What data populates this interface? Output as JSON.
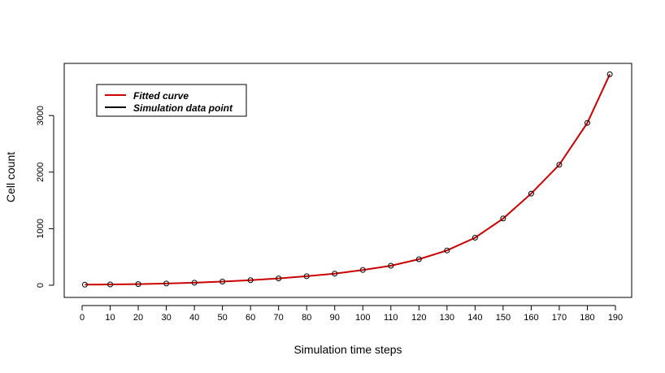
{
  "chart_data": {
    "type": "scatter",
    "title": "",
    "xlabel": "Simulation time steps",
    "ylabel": "Cell count",
    "xlim": [
      0,
      190
    ],
    "ylim": [
      0,
      3750
    ],
    "x_ticks": [
      0,
      10,
      20,
      30,
      40,
      50,
      60,
      70,
      80,
      90,
      100,
      110,
      120,
      130,
      140,
      150,
      160,
      170,
      180,
      190
    ],
    "x_tick_labels": [
      "0",
      "10",
      "20",
      "30",
      "40",
      "50",
      "60",
      "70",
      "80",
      "90",
      "100",
      "110",
      "120",
      "130",
      "140",
      "150",
      "160",
      "170",
      "180",
      "190"
    ],
    "y_ticks": [
      0,
      1000,
      2000,
      3000
    ],
    "y_tick_labels": [
      "0",
      "1000",
      "2000",
      "3000"
    ],
    "grid": false,
    "legend_position": "top-left",
    "series": [
      {
        "name": "Simulation data point",
        "kind": "points",
        "marker": "open-circle",
        "color": "#000000",
        "x": [
          1,
          10,
          20,
          30,
          40,
          50,
          60,
          70,
          80,
          90,
          100,
          110,
          120,
          130,
          140,
          150,
          160,
          170,
          180,
          188
        ],
        "y": [
          10,
          14,
          20,
          30,
          45,
          65,
          90,
          120,
          160,
          205,
          270,
          345,
          460,
          615,
          840,
          1180,
          1620,
          2130,
          2870,
          3730
        ]
      },
      {
        "name": "Fitted curve",
        "kind": "line",
        "color": "#cc0000",
        "x": [
          1,
          10,
          20,
          30,
          40,
          50,
          60,
          70,
          80,
          90,
          100,
          110,
          120,
          130,
          140,
          150,
          160,
          170,
          180,
          188
        ],
        "y": [
          10,
          14,
          20,
          30,
          45,
          65,
          90,
          120,
          160,
          205,
          270,
          345,
          460,
          615,
          840,
          1180,
          1620,
          2130,
          2870,
          3730
        ]
      }
    ],
    "legend": [
      {
        "label": "Fitted curve",
        "color": "#cc0000"
      },
      {
        "label": "Simulation data point",
        "color": "#000000"
      }
    ]
  }
}
